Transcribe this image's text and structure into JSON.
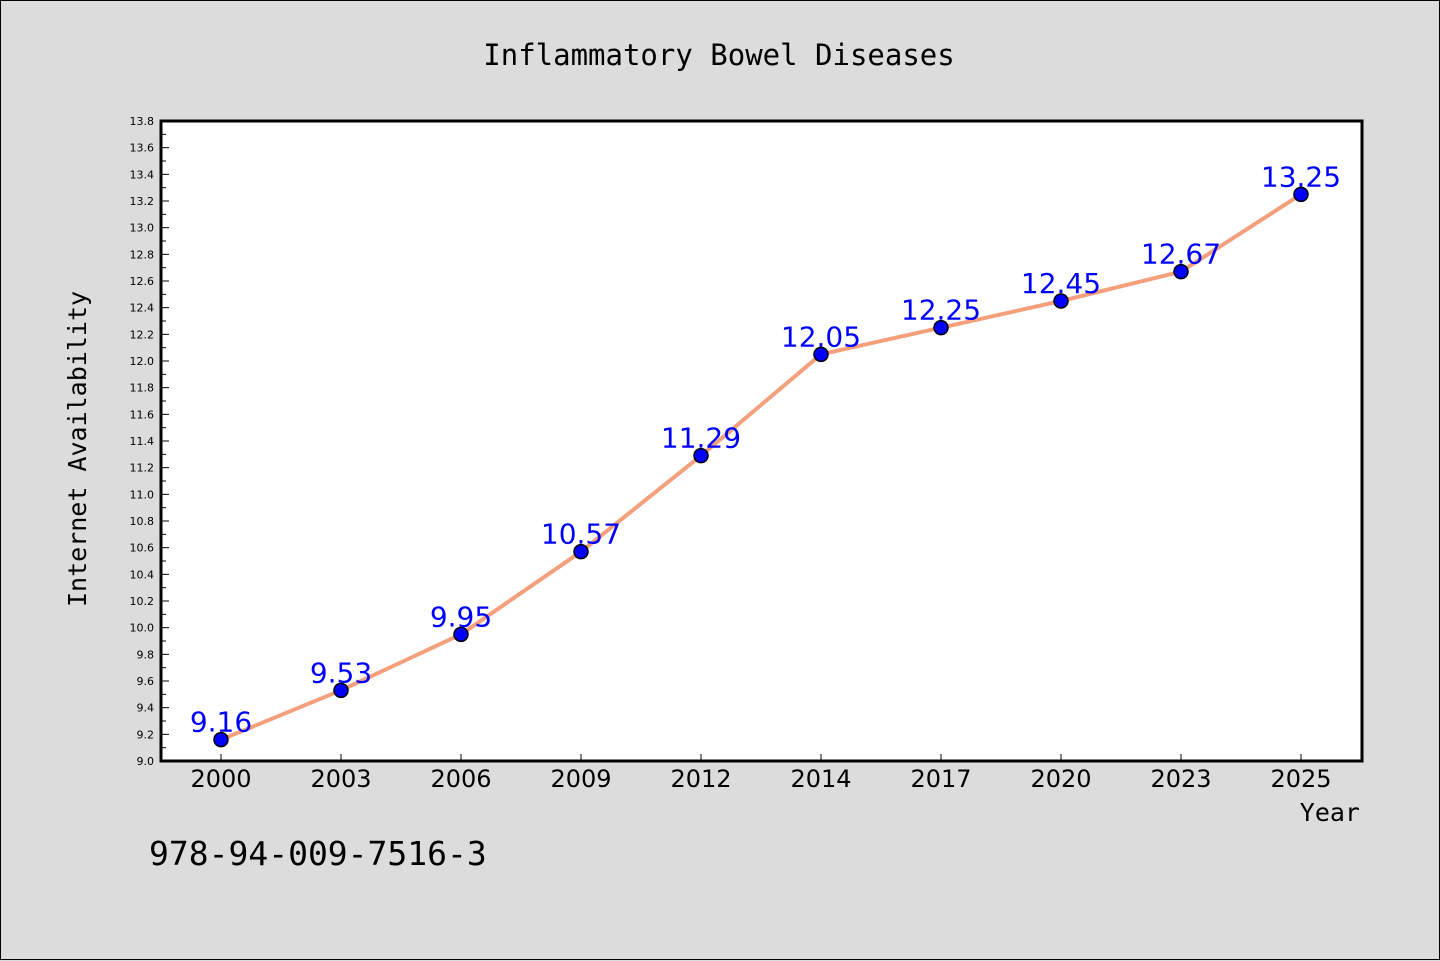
{
  "chart_data": {
    "type": "line",
    "title": "Inflammatory Bowel Diseases",
    "xlabel": "Year",
    "ylabel": "Internet Availability",
    "categories": [
      "2000",
      "2003",
      "2006",
      "2009",
      "2012",
      "2014",
      "2017",
      "2020",
      "2023",
      "2025"
    ],
    "series": [
      {
        "values": [
          9.16,
          9.53,
          9.95,
          10.57,
          11.29,
          12.05,
          12.25,
          12.45,
          12.67,
          13.25
        ],
        "data_labels": [
          "9.16",
          "9.53",
          "9.95",
          "10.57",
          "11.29",
          "12.05",
          "12.25",
          "12.45",
          "12.67",
          "13.25"
        ],
        "line_color": "#f4a07c",
        "marker_color": "#0000ff",
        "label_color": "#0000ff"
      }
    ],
    "ylim": [
      9.0,
      13.8
    ],
    "yticks": [
      "9.0",
      "9.2",
      "9.4",
      "9.6",
      "9.8",
      "10.0",
      "10.2",
      "10.4",
      "10.6",
      "10.8",
      "11.0",
      "11.2",
      "11.4",
      "11.6",
      "11.8",
      "12.0",
      "12.2",
      "12.4",
      "12.6",
      "12.8",
      "13.0",
      "13.2",
      "13.4",
      "13.6",
      "13.8"
    ],
    "grid": false,
    "background": "#dcdcdc",
    "plot_background": "#ffffff"
  },
  "footer_code": "978-94-009-7516-3"
}
